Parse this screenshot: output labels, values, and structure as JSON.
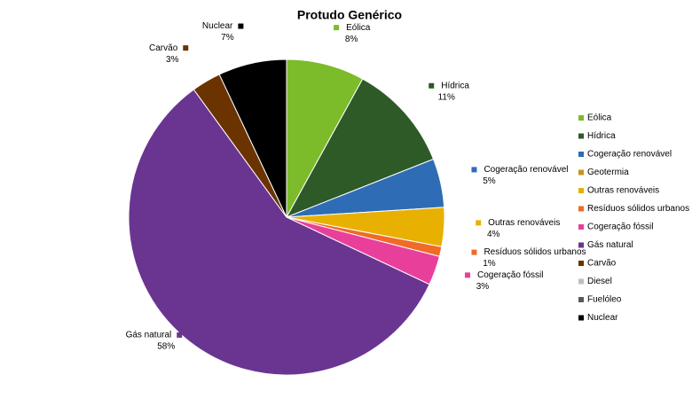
{
  "chart_data": {
    "type": "pie",
    "title": "Protudo Genérico",
    "categories": [
      "Eólica",
      "Hídrica",
      "Cogeração renovável",
      "Geotermia",
      "Outras renováveis",
      "Resíduos sólidos urbanos",
      "Cogeração fóssil",
      "Gás natural",
      "Carvão",
      "Diesel",
      "Fuelóleo",
      "Nuclear"
    ],
    "values": [
      8,
      11,
      5,
      0,
      4,
      1,
      3,
      58,
      3,
      0,
      0,
      7
    ],
    "value_labels": [
      "8%",
      "11%",
      "5%",
      null,
      "4%",
      "1%",
      "3%",
      "58%",
      "3%",
      null,
      null,
      "7%"
    ],
    "colors": [
      "#7cbb2a",
      "#2d5a27",
      "#2e6db5",
      "#c9961a",
      "#e8b000",
      "#f06a28",
      "#e8409a",
      "#6a3591",
      "#6b3300",
      "#bfbfbf",
      "#595959",
      "#000000"
    ],
    "legend": "right"
  }
}
